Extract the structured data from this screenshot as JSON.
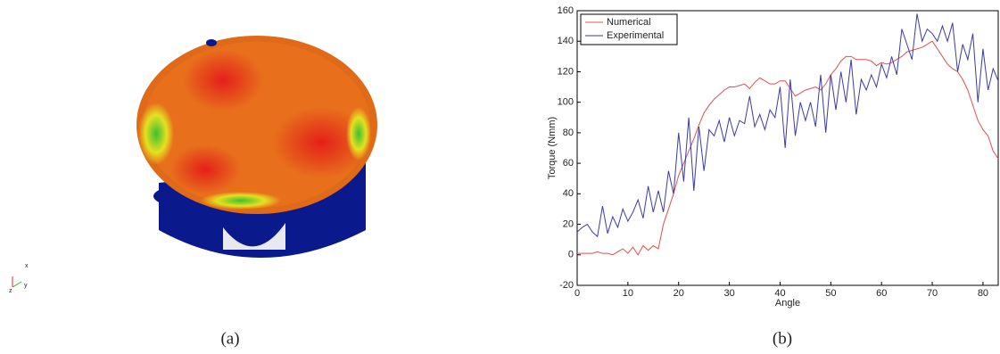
{
  "figure": {
    "caption_a": "(a)",
    "caption_b": "(b)",
    "triad_labels": [
      "x",
      "z",
      "y"
    ]
  },
  "chart_data": {
    "type": "line",
    "xlabel": "Angle",
    "ylabel": "Torque (Nmm)",
    "x": [
      0,
      1,
      2,
      3,
      4,
      5,
      6,
      7,
      8,
      9,
      10,
      11,
      12,
      13,
      14,
      15,
      16,
      17,
      18,
      19,
      20,
      21,
      22,
      23,
      24,
      25,
      26,
      27,
      28,
      29,
      30,
      31,
      32,
      33,
      34,
      35,
      36,
      37,
      38,
      39,
      40,
      41,
      42,
      43,
      44,
      45,
      46,
      47,
      48,
      49,
      50,
      51,
      52,
      53,
      54,
      55,
      56,
      57,
      58,
      59,
      60,
      61,
      62,
      63,
      64,
      65,
      66,
      67,
      68,
      69,
      70,
      71,
      72,
      73,
      74,
      75,
      76,
      77,
      78,
      79,
      80,
      81,
      82,
      83
    ],
    "series": [
      {
        "name": "Numerical",
        "color": "#e05050",
        "values": [
          1,
          1,
          1,
          1,
          2,
          1,
          1,
          0,
          2,
          4,
          1,
          5,
          0,
          6,
          3,
          6,
          4,
          20,
          30,
          40,
          52,
          60,
          68,
          76,
          85,
          93,
          98,
          102,
          105,
          108,
          110,
          110,
          111,
          112,
          109,
          113,
          116,
          114,
          112,
          112,
          114,
          114,
          109,
          104,
          106,
          108,
          109,
          110,
          108,
          112,
          118,
          122,
          127,
          130,
          130,
          128,
          128,
          128,
          127,
          124,
          126,
          125,
          126,
          128,
          130,
          133,
          134,
          135,
          136,
          138,
          140,
          135,
          130,
          125,
          122,
          120,
          115,
          108,
          98,
          88,
          82,
          78,
          68,
          63
        ]
      },
      {
        "name": "Experimental",
        "color": "#3a3aa8",
        "values": [
          15,
          18,
          20,
          15,
          12,
          32,
          14,
          25,
          18,
          30,
          22,
          28,
          36,
          24,
          45,
          28,
          42,
          28,
          55,
          40,
          80,
          48,
          90,
          42,
          84,
          55,
          82,
          78,
          88,
          74,
          90,
          78,
          88,
          86,
          104,
          84,
          92,
          82,
          95,
          90,
          110,
          70,
          115,
          78,
          100,
          88,
          100,
          84,
          118,
          80,
          118,
          95,
          120,
          100,
          128,
          92,
          115,
          108,
          118,
          110,
          125,
          116,
          130,
          118,
          148,
          138,
          128,
          158,
          140,
          148,
          145,
          140,
          150,
          140,
          152,
          120,
          138,
          128,
          145,
          100,
          135,
          108,
          122,
          114
        ]
      }
    ],
    "xlim": [
      0,
      83
    ],
    "ylim": [
      -20,
      160
    ],
    "xticks": [
      0,
      10,
      20,
      30,
      40,
      50,
      60,
      70,
      80
    ],
    "yticks": [
      -20,
      0,
      20,
      40,
      60,
      80,
      100,
      120,
      140,
      160
    ],
    "legend": "upper-left"
  }
}
